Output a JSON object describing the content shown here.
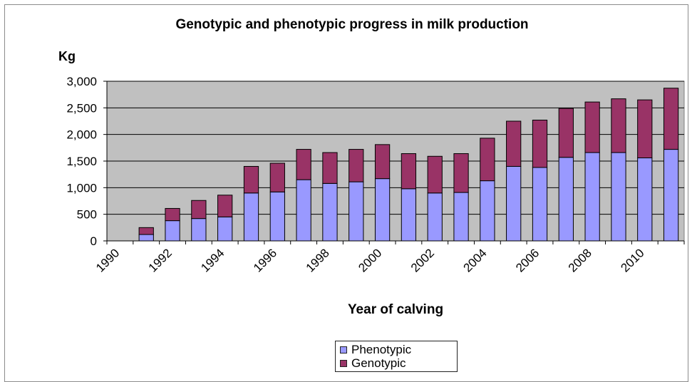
{
  "chart_data": {
    "type": "bar",
    "stacked": true,
    "title": "Genotypic and phenotypic progress in milk production",
    "ylabel": "Kg",
    "xlabel": "Year of calving",
    "ylim": [
      0,
      3000
    ],
    "yticks": [
      0,
      500,
      1000,
      1500,
      2000,
      2500,
      3000
    ],
    "ytick_labels": [
      "0",
      "500",
      "1,000",
      "1,500",
      "2,000",
      "2,500",
      "3,000"
    ],
    "xtick_labels": [
      "1990",
      "1992",
      "1994",
      "1996",
      "1998",
      "2000",
      "2002",
      "2004",
      "2006",
      "2008",
      "2010"
    ],
    "categories": [
      "1990",
      "1991",
      "1992",
      "1993",
      "1994",
      "1995",
      "1996",
      "1997",
      "1998",
      "1999",
      "2000",
      "2001",
      "2002",
      "2003",
      "2004",
      "2005",
      "2006",
      "2007",
      "2008",
      "2009",
      "2010",
      "2011"
    ],
    "series": [
      {
        "name": "Phenotypic",
        "color": "#9999ff",
        "values": [
          null,
          120,
          380,
          420,
          450,
          900,
          920,
          1150,
          1080,
          1110,
          1170,
          980,
          900,
          910,
          1130,
          1400,
          1380,
          1570,
          1660,
          1660,
          1560,
          1720
        ]
      },
      {
        "name": "Genotypic",
        "color": "#993366",
        "values": [
          null,
          130,
          230,
          340,
          410,
          500,
          540,
          570,
          580,
          610,
          640,
          660,
          690,
          730,
          800,
          850,
          890,
          920,
          950,
          1010,
          1090,
          1150
        ]
      }
    ],
    "grid": true,
    "plot_background": "#c0c0c0",
    "legend_position": "bottom"
  }
}
